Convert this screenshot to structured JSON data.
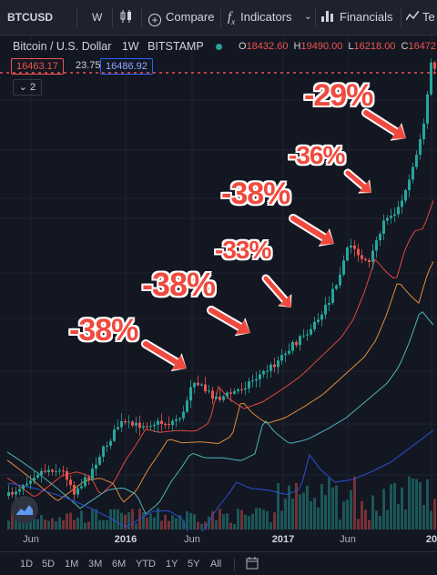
{
  "toolbar": {
    "symbol": "BTCUSD",
    "interval": "W",
    "compare": "Compare",
    "indicators": "Indicators",
    "financials": "Financials",
    "truncated_tab": "Te"
  },
  "legend": {
    "title": "Bitcoin / U.S. Dollar",
    "interval": "1W",
    "exchange": "BITSTAMP",
    "o_key": "O",
    "o_val": "18432.60",
    "h_key": "H",
    "h_val": "19490.00",
    "l_key": "L",
    "l_val": "16218.00",
    "c_key": "C",
    "c_val": "16472."
  },
  "price_row": {
    "bid": "16463.17",
    "spread": "23.75",
    "ask": "16486.92"
  },
  "collapse": {
    "count": "2"
  },
  "annotations": [
    "-38%",
    "-38%",
    "-33%",
    "-38%",
    "-36%",
    "-29%"
  ],
  "x_axis": {
    "labels": [
      "Jun",
      "2016",
      "Jun",
      "2017",
      "Jun",
      "20"
    ]
  },
  "bottom_bar": {
    "ranges": [
      "1D",
      "5D",
      "1M",
      "3M",
      "6M",
      "YTD",
      "1Y",
      "5Y",
      "All"
    ]
  },
  "colors": {
    "background": "#131722",
    "up": "#26a69a",
    "down": "#ef5350",
    "ma_red": "#e0483e",
    "ma_orange": "#e08c3a",
    "ma_teal": "#4fb3b8",
    "ma_blue": "#2a4fd4",
    "annotation": "#f04a3f"
  },
  "icons": [
    "candles-icon",
    "compare-icon",
    "indicators-icon",
    "financials-icon",
    "arrow-icon",
    "calendar-icon",
    "tradingview-logo-icon"
  ]
}
